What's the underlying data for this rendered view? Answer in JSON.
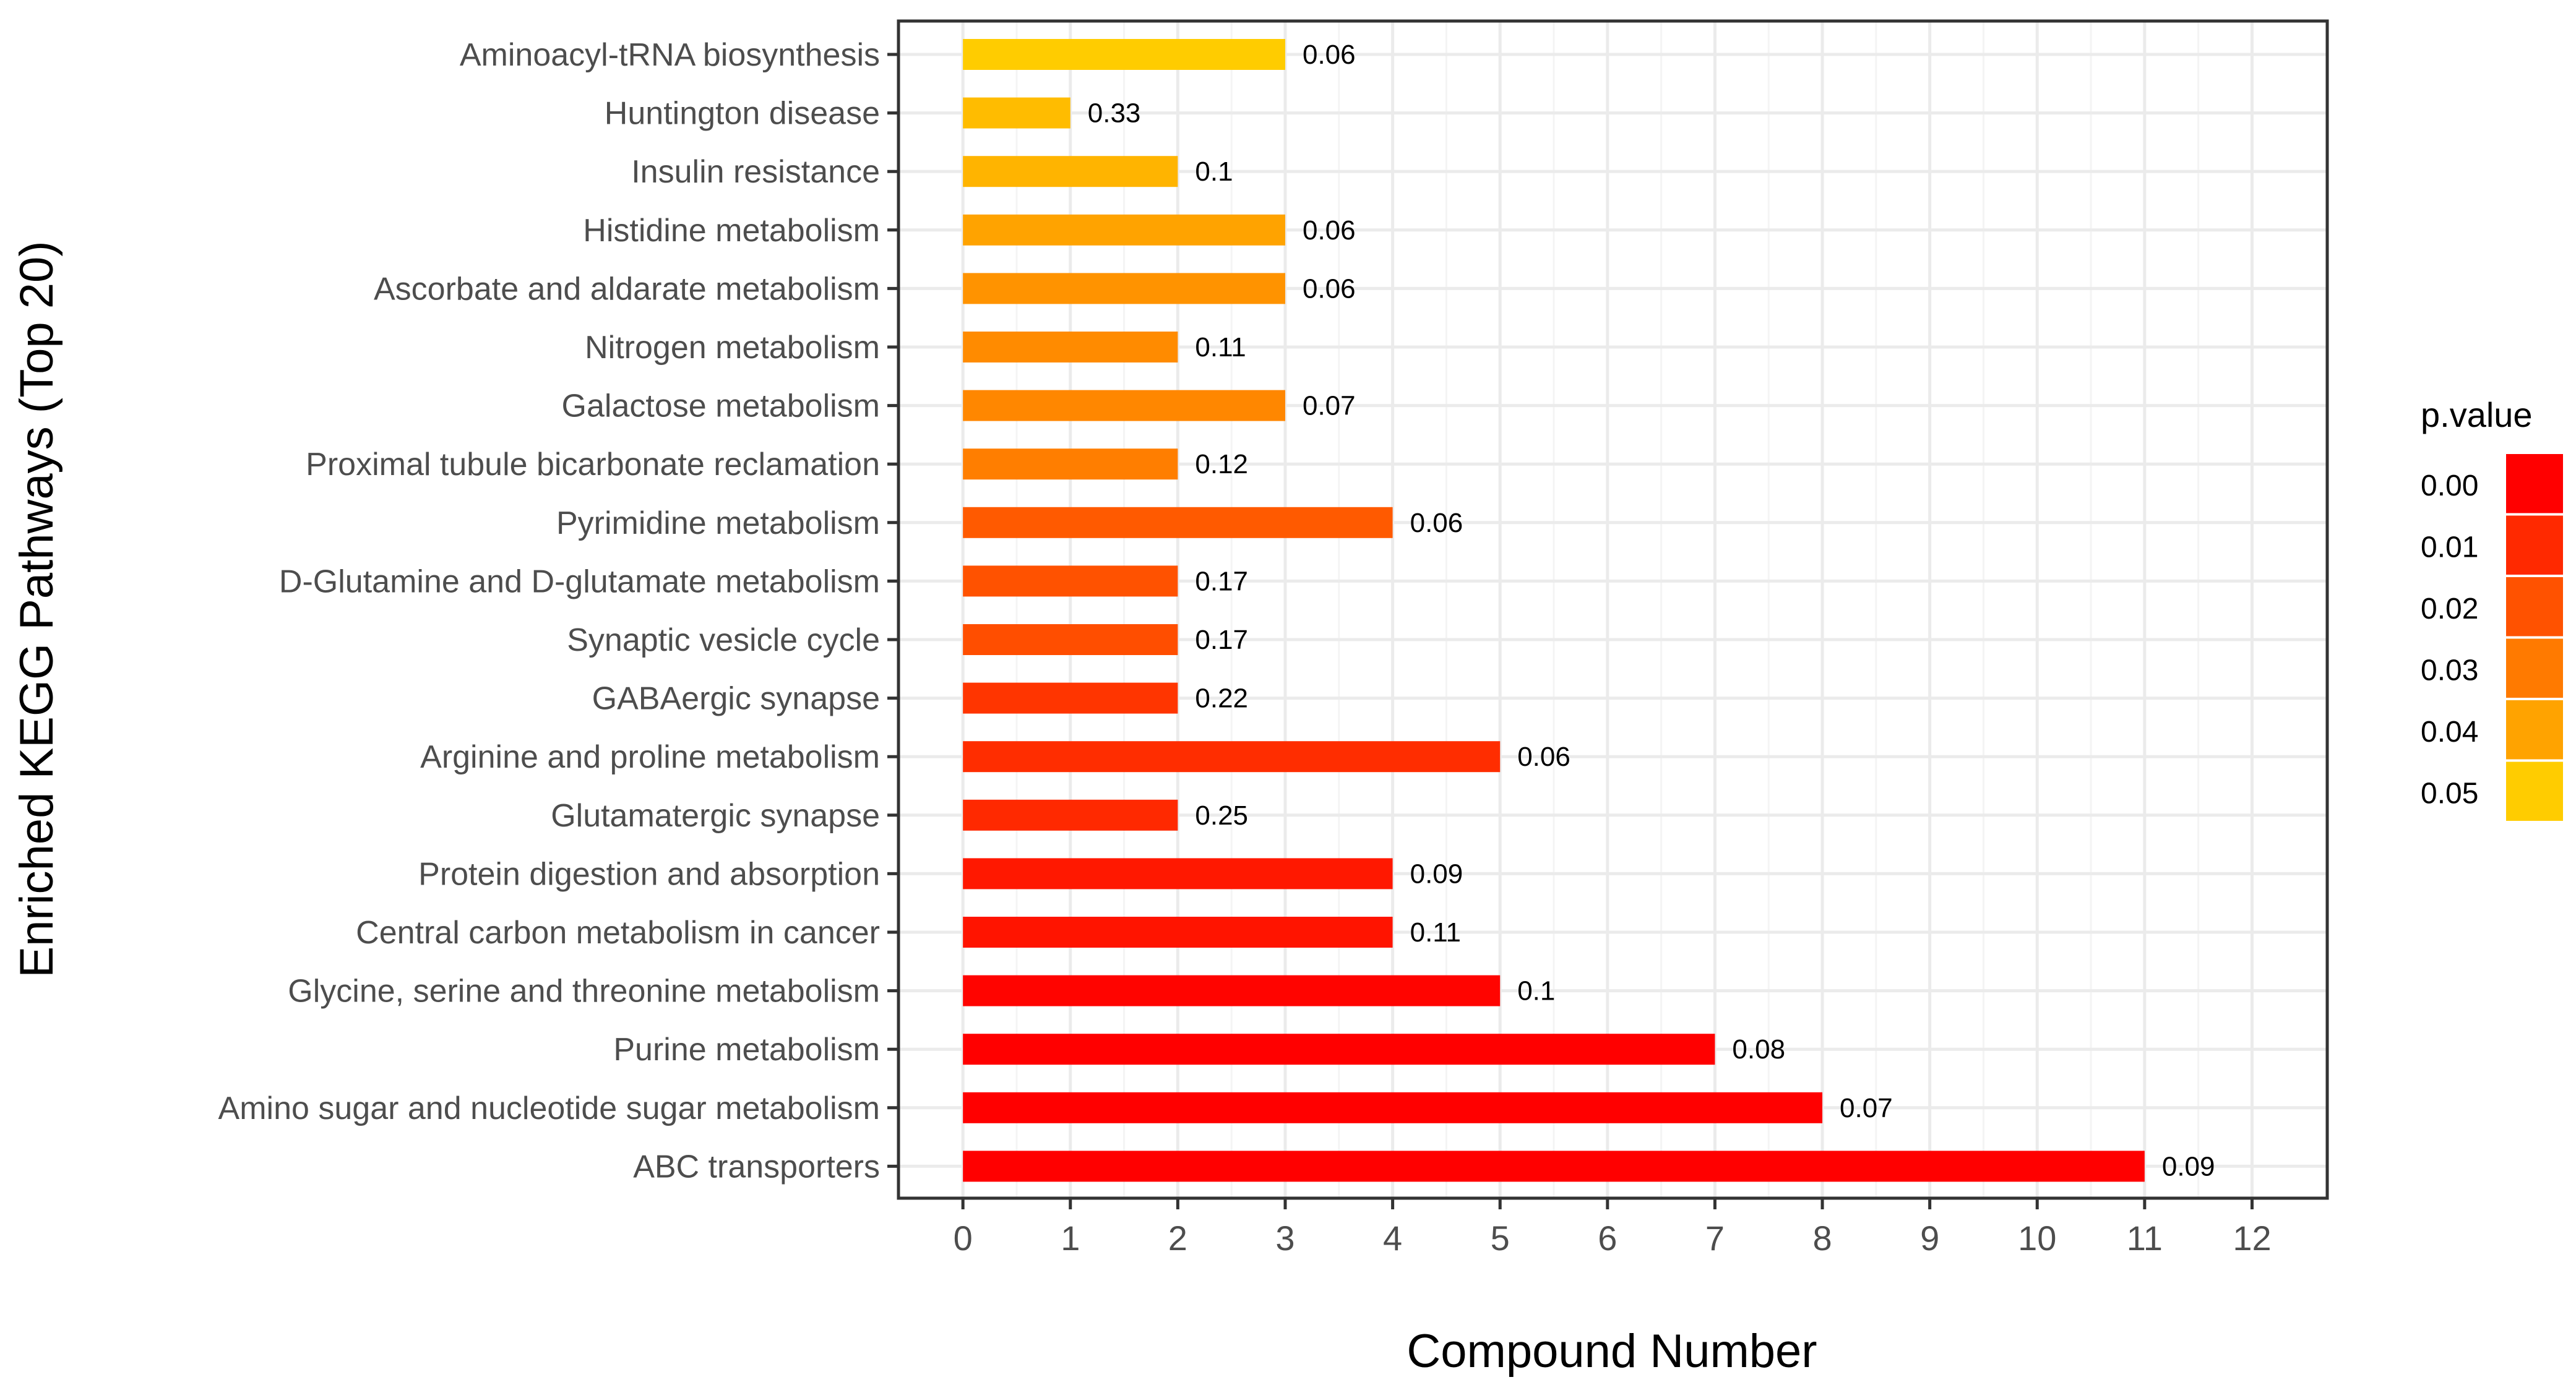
{
  "chart_data": {
    "type": "bar",
    "orientation": "horizontal",
    "xlabel": "Compound Number",
    "ylabel": "Enriched KEGG Pathways (Top 20)",
    "xlim": [
      -0.6,
      12.7
    ],
    "xticks": [
      0,
      1,
      2,
      3,
      4,
      5,
      6,
      7,
      8,
      9,
      10,
      11,
      12
    ],
    "grid": true,
    "categories": [
      "Aminoacyl-tRNA biosynthesis",
      "Huntington disease",
      "Insulin resistance",
      "Histidine metabolism",
      "Ascorbate and aldarate metabolism",
      "Nitrogen metabolism",
      "Galactose metabolism",
      "Proximal tubule bicarbonate reclamation",
      "Pyrimidine metabolism",
      "D-Glutamine and D-glutamate metabolism",
      "Synaptic vesicle cycle",
      "GABAergic synapse",
      "Arginine and proline metabolism",
      "Glutamatergic synapse",
      "Protein digestion and absorption",
      "Central carbon metabolism in cancer",
      "Glycine, serine and threonine metabolism",
      "Purine metabolism",
      "Amino sugar and nucleotide sugar metabolism",
      "ABC transporters"
    ],
    "values": [
      3,
      1,
      2,
      3,
      3,
      2,
      3,
      2,
      4,
      2,
      2,
      2,
      5,
      2,
      4,
      4,
      5,
      7,
      8,
      11
    ],
    "bar_labels": [
      "0.06",
      "0.33",
      "0.1",
      "0.06",
      "0.06",
      "0.11",
      "0.07",
      "0.12",
      "0.06",
      "0.17",
      "0.17",
      "0.22",
      "0.06",
      "0.25",
      "0.09",
      "0.11",
      "0.1",
      "0.08",
      "0.07",
      "0.09"
    ],
    "p_values": [
      0.05,
      0.046,
      0.044,
      0.04,
      0.036,
      0.034,
      0.033,
      0.031,
      0.022,
      0.02,
      0.019,
      0.013,
      0.011,
      0.01,
      0.006,
      0.005,
      0.001,
      0.0,
      0.0,
      0.0
    ],
    "legend": {
      "title": "p.value",
      "labels": [
        "0.00",
        "0.01",
        "0.02",
        "0.03",
        "0.04",
        "0.05"
      ],
      "placement": "right",
      "color_low": "#ff0000",
      "color_high": "#ffcc00"
    }
  }
}
